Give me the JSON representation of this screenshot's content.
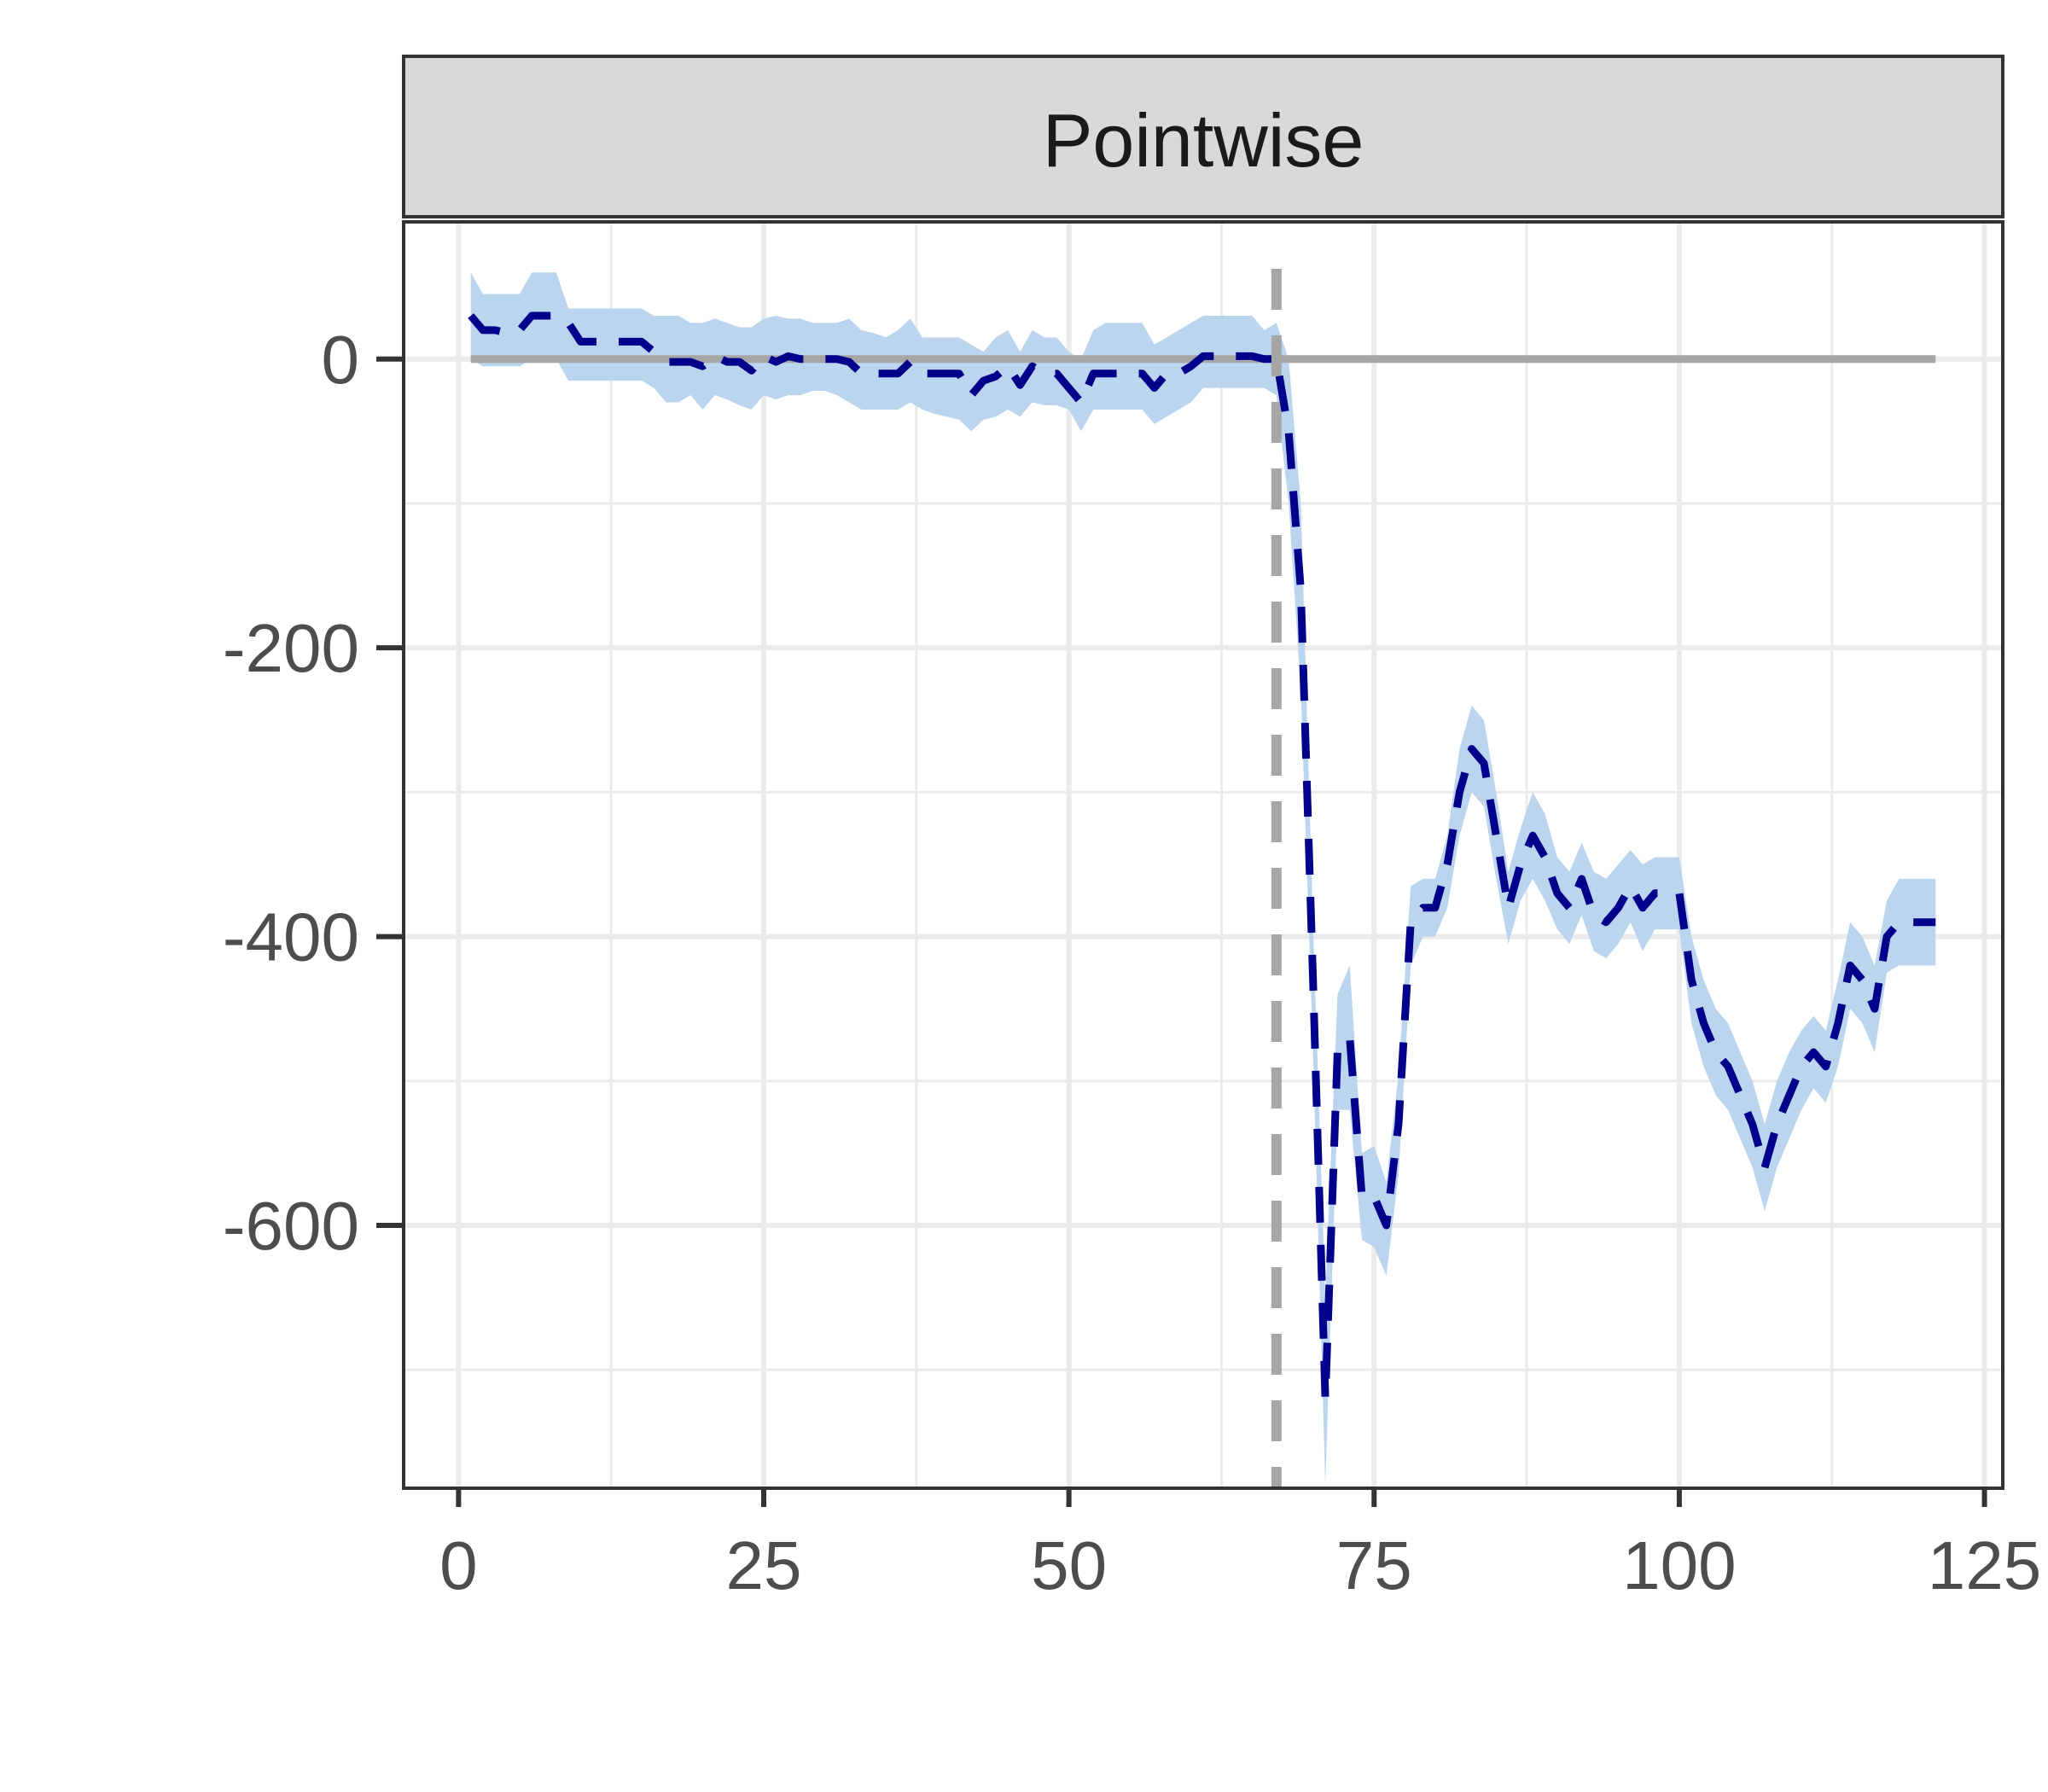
{
  "chart_data": {
    "type": "line",
    "title": "",
    "panel_title": "Pointwise",
    "xlabel": "",
    "ylabel": "",
    "xlim": [
      -4.5,
      126.5
    ],
    "ylim": [
      -782,
      95
    ],
    "x_ticks": [
      0,
      25,
      50,
      75,
      100,
      125
    ],
    "y_ticks": [
      0,
      -200,
      -400,
      -600
    ],
    "grid": true,
    "treatment_time": 67,
    "reference_line": {
      "y": 0,
      "x_from": 1,
      "x_to": 121
    },
    "colors": {
      "estimate": "#00008b",
      "band": "#bcd5ef",
      "reference": "#a6a6a6",
      "panel_border": "#333333",
      "strip_fill": "#d9d9d9",
      "grid_major": "#ebebeb",
      "grid_minor": "#ebebeb"
    },
    "series": [
      {
        "x": [
          1,
          2,
          3,
          4,
          5,
          6,
          7,
          8,
          9,
          10,
          11,
          12,
          13,
          14,
          15,
          16,
          17,
          18,
          19,
          20,
          21,
          22,
          23,
          24,
          25,
          26,
          27,
          28,
          29,
          30,
          31,
          32,
          33,
          34,
          35,
          36,
          37,
          38,
          39,
          40,
          41,
          42,
          43,
          44,
          45,
          46,
          47,
          48,
          49,
          50,
          51,
          52,
          53,
          54,
          55,
          56,
          57,
          58,
          59,
          60,
          61,
          62,
          63,
          64,
          65,
          66,
          67,
          68,
          69,
          70,
          71,
          72,
          73,
          74,
          75,
          76,
          77,
          78,
          79,
          80,
          81,
          82,
          83,
          84,
          85,
          86,
          87,
          88,
          89,
          90,
          91,
          92,
          93,
          94,
          95,
          96,
          97,
          98,
          99,
          100,
          101,
          102,
          103,
          104,
          105,
          106,
          107,
          108,
          109,
          110,
          111,
          112,
          113,
          114,
          115,
          116,
          117,
          118,
          119,
          120,
          121
        ],
        "y": [
          30,
          20,
          20,
          18,
          20,
          30,
          30,
          30,
          25,
          12,
          12,
          12,
          12,
          12,
          12,
          5,
          -2,
          -2,
          -2,
          -5,
          2,
          -2,
          -2,
          -8,
          2,
          -2,
          2,
          0,
          0,
          0,
          0,
          -2,
          -10,
          -10,
          -10,
          -10,
          -2,
          -10,
          -10,
          -10,
          -10,
          -25,
          -15,
          -12,
          -5,
          -18,
          -5,
          -10,
          -10,
          -20,
          -30,
          -10,
          -10,
          -10,
          -10,
          -10,
          -20,
          -10,
          -10,
          -5,
          2,
          2,
          2,
          2,
          2,
          0,
          0,
          -50,
          -160,
          -430,
          -720,
          -480,
          -470,
          -580,
          -580,
          -600,
          -530,
          -390,
          -380,
          -380,
          -350,
          -300,
          -270,
          -280,
          -330,
          -380,
          -350,
          -330,
          -345,
          -370,
          -380,
          -360,
          -385,
          -390,
          -380,
          -365,
          -380,
          -370,
          -370,
          -370,
          -430,
          -460,
          -480,
          -490,
          -510,
          -530,
          -560,
          -530,
          -510,
          -490,
          -480,
          -490,
          -460,
          -420,
          -430,
          -450,
          -400,
          -390,
          -390,
          -390,
          -390
        ],
        "upper": [
          60,
          45,
          45,
          45,
          45,
          60,
          60,
          60,
          35,
          35,
          35,
          35,
          35,
          35,
          35,
          30,
          30,
          30,
          25,
          25,
          28,
          25,
          22,
          22,
          28,
          30,
          28,
          28,
          25,
          25,
          25,
          28,
          20,
          18,
          15,
          20,
          28,
          15,
          15,
          15,
          15,
          10,
          5,
          15,
          20,
          5,
          20,
          15,
          15,
          5,
          0,
          20,
          25,
          25,
          25,
          25,
          10,
          15,
          20,
          25,
          30,
          30,
          30,
          30,
          30,
          20,
          25,
          0,
          -100,
          -390,
          -650,
          -440,
          -420,
          -550,
          -545,
          -570,
          -495,
          -365,
          -360,
          -360,
          -330,
          -270,
          -240,
          -250,
          -300,
          -355,
          -325,
          -300,
          -315,
          -345,
          -355,
          -335,
          -355,
          -360,
          -350,
          -340,
          -350,
          -345,
          -345,
          -345,
          -400,
          -430,
          -450,
          -460,
          -480,
          -500,
          -530,
          -500,
          -480,
          -465,
          -455,
          -465,
          -430,
          -390,
          -400,
          -420,
          -375,
          -360,
          -360,
          -360,
          -360
        ],
        "lower": [
          0,
          -5,
          -5,
          -5,
          -5,
          0,
          0,
          0,
          -15,
          -15,
          -15,
          -15,
          -15,
          -15,
          -15,
          -20,
          -30,
          -30,
          -25,
          -35,
          -25,
          -28,
          -32,
          -35,
          -25,
          -28,
          -25,
          -25,
          -22,
          -22,
          -25,
          -30,
          -35,
          -35,
          -35,
          -35,
          -30,
          -35,
          -38,
          -40,
          -42,
          -50,
          -42,
          -40,
          -35,
          -40,
          -30,
          -32,
          -32,
          -35,
          -50,
          -35,
          -35,
          -35,
          -35,
          -35,
          -45,
          -40,
          -35,
          -30,
          -20,
          -20,
          -20,
          -20,
          -20,
          -20,
          -25,
          -100,
          -230,
          -480,
          -780,
          -520,
          -520,
          -610,
          -615,
          -635,
          -565,
          -420,
          -400,
          -400,
          -380,
          -330,
          -300,
          -310,
          -360,
          -405,
          -375,
          -360,
          -375,
          -395,
          -405,
          -385,
          -410,
          -415,
          -405,
          -390,
          -410,
          -395,
          -395,
          -395,
          -460,
          -490,
          -510,
          -520,
          -540,
          -560,
          -590,
          -560,
          -540,
          -520,
          -505,
          -515,
          -490,
          -450,
          -460,
          -480,
          -425,
          -420,
          -420,
          -420,
          -420
        ]
      }
    ]
  }
}
